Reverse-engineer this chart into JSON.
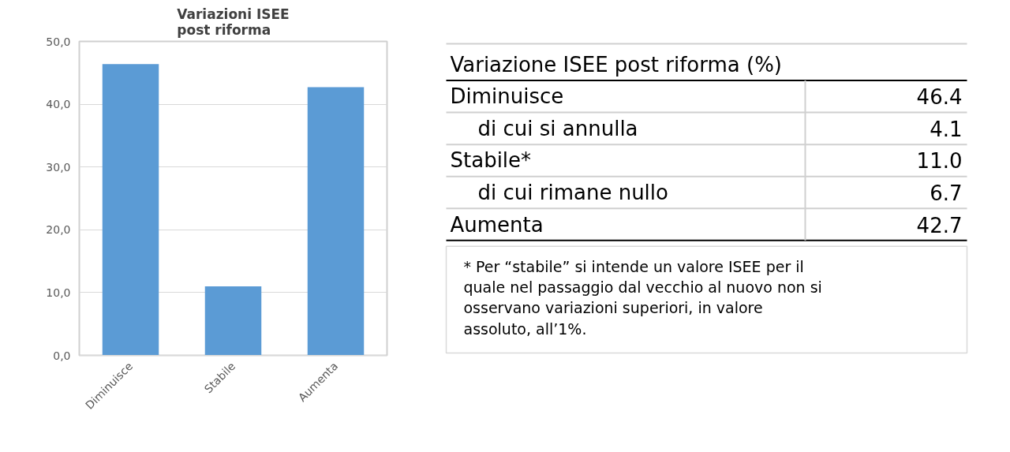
{
  "chart_data": [
    {
      "type": "bar",
      "title": "Variazioni ISEE\npost riforma",
      "categories": [
        "Diminuisce",
        "Stabile",
        "Aumenta"
      ],
      "values": [
        46.4,
        11.0,
        42.7
      ],
      "color": "#5b9bd5",
      "ylim": [
        0,
        50
      ],
      "yticks": [
        {
          "value": 0,
          "label": "0,0"
        },
        {
          "value": 10,
          "label": "10,0"
        },
        {
          "value": 20,
          "label": "20,0"
        },
        {
          "value": 30,
          "label": "30,0"
        },
        {
          "value": 40,
          "label": "40,0"
        },
        {
          "value": 50,
          "label": "50,0"
        }
      ],
      "grid": "y"
    },
    {
      "type": "other",
      "title": "Variazione ISEE post riforma (%)",
      "categories": [
        "Diminuisce",
        "di cui si annulla",
        "Stabile*",
        "di cui rimane nullo",
        "Aumenta"
      ],
      "values": [
        46.4,
        4.1,
        11.0,
        6.7,
        42.7
      ],
      "value_labels": [
        "46.4",
        "4.1",
        "11.0",
        "6.7",
        "42.7"
      ],
      "annotations": [
        "* Per “stabile” si intende un valore ISEE per il quale nel passaggio dal vecchio al nuovo non si osservano variazioni superiori, in valore assoluto, all’1%."
      ]
    }
  ]
}
